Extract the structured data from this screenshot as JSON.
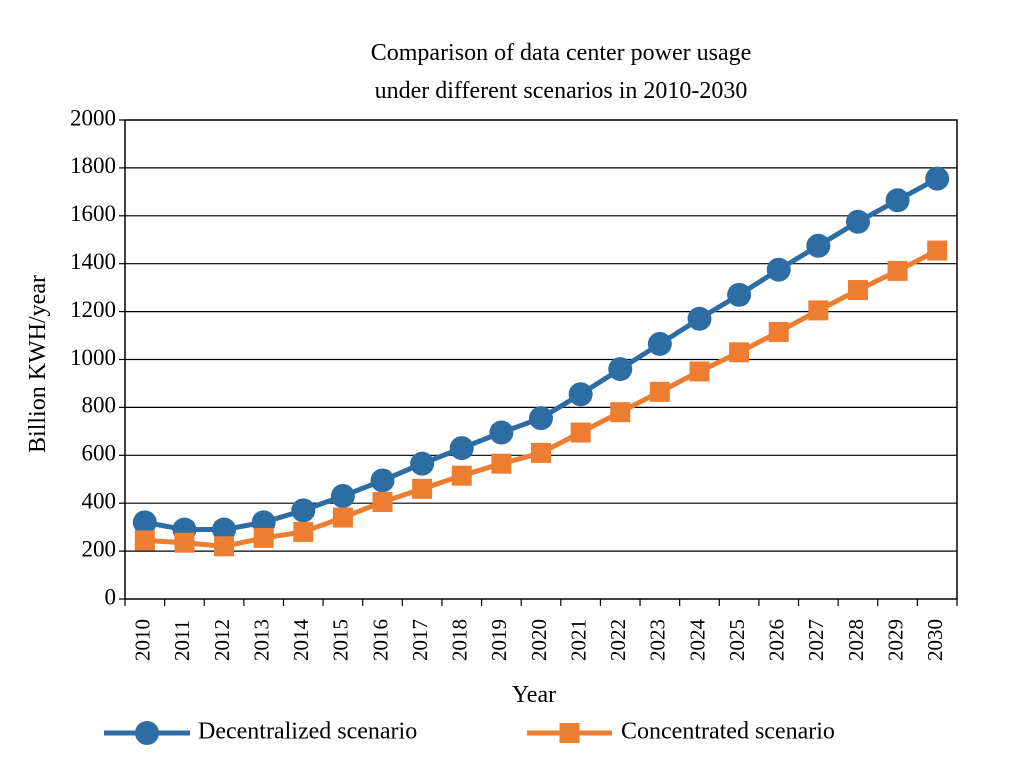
{
  "chart_data": {
    "type": "line",
    "title": [
      "Comparison of data center power usage",
      "under different scenarios in 2010-2030"
    ],
    "xlabel": "Year",
    "ylabel": "Billion KWH/year",
    "ylim": [
      0,
      2000
    ],
    "yticks": [
      "0",
      "200",
      "400",
      "600",
      "800",
      "1000",
      "1200",
      "1400",
      "1600",
      "1800",
      "2000"
    ],
    "categories": [
      "2010",
      "2011",
      "2012",
      "2013",
      "2014",
      "2015",
      "2016",
      "2017",
      "2018",
      "2019",
      "2020",
      "2021",
      "2022",
      "2023",
      "2024",
      "2025",
      "2026",
      "2027",
      "2028",
      "2029",
      "2030"
    ],
    "grid": true,
    "legend_position": "bottom",
    "series": [
      {
        "name": "Decentralized scenario",
        "color": "#2e6da4",
        "marker": "circle",
        "values": [
          320,
          290,
          290,
          320,
          370,
          430,
          495,
          565,
          630,
          695,
          755,
          855,
          960,
          1065,
          1170,
          1270,
          1375,
          1475,
          1575,
          1665,
          1755
        ]
      },
      {
        "name": "Concentrated scenario",
        "color": "#ed7d31",
        "marker": "square",
        "values": [
          245,
          235,
          220,
          255,
          280,
          340,
          405,
          460,
          515,
          565,
          610,
          695,
          780,
          865,
          950,
          1030,
          1115,
          1205,
          1290,
          1370,
          1455
        ]
      }
    ]
  }
}
